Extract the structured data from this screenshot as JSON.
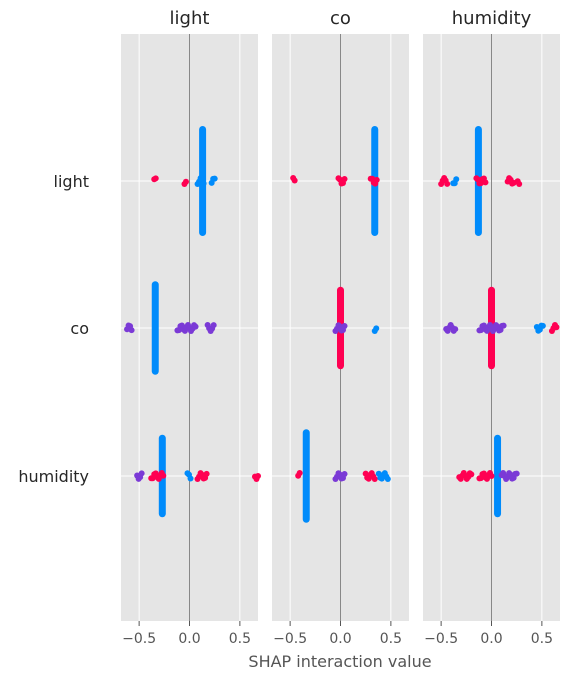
{
  "chart_data": {
    "type": "scatter",
    "kind": "shap_interaction_summary",
    "features": [
      "light",
      "co",
      "humidity"
    ],
    "panel_titles": [
      "light",
      "co",
      "humidity"
    ],
    "row_labels": [
      "light",
      "co",
      "humidity"
    ],
    "xlabel": "SHAP interaction value",
    "xlim": [
      -0.68,
      0.68
    ],
    "xticks": [
      -0.5,
      0.0,
      0.5
    ],
    "xtick_labels": [
      "−0.5",
      "0.0",
      "0.5"
    ],
    "grid": true,
    "background": "#e5e5e5",
    "colors": {
      "high": "#ff0052",
      "low": "#008bfb",
      "mid": "#7b3ad6"
    },
    "points": [
      [
        [
          [
            -0.35,
            -0.33,
            "high"
          ],
          [
            -0.05,
            -0.03,
            "high"
          ],
          [
            0.08,
            0.15,
            "low"
          ],
          [
            0.22,
            0.26,
            "low"
          ]
        ],
        [
          [
            -0.62,
            -0.57,
            "mid"
          ],
          [
            -0.12,
            0.06,
            "mid"
          ],
          [
            0.18,
            0.24,
            "mid"
          ]
        ],
        [
          [
            -0.52,
            -0.47,
            "mid"
          ],
          [
            -0.38,
            -0.25,
            "high"
          ],
          [
            -0.02,
            0.02,
            "low"
          ],
          [
            0.08,
            0.18,
            "high"
          ],
          [
            0.65,
            0.68,
            "high"
          ]
        ]
      ],
      [
        [
          [
            -0.47,
            -0.45,
            "high"
          ],
          [
            -0.02,
            0.04,
            "high"
          ],
          [
            0.3,
            0.36,
            "high"
          ]
        ],
        [
          [
            -0.05,
            0.05,
            "mid"
          ],
          [
            0.34,
            0.36,
            "low"
          ]
        ],
        [
          [
            -0.42,
            -0.4,
            "high"
          ],
          [
            -0.05,
            0.05,
            "mid"
          ],
          [
            0.25,
            0.34,
            "high"
          ],
          [
            0.38,
            0.47,
            "low"
          ]
        ]
      ],
      [
        [
          [
            -0.5,
            -0.43,
            "high"
          ],
          [
            -0.38,
            -0.35,
            "low"
          ],
          [
            -0.15,
            -0.05,
            "high"
          ],
          [
            0.16,
            0.22,
            "high"
          ],
          [
            0.26,
            0.28,
            "high"
          ]
        ],
        [
          [
            -0.45,
            -0.35,
            "mid"
          ],
          [
            -0.12,
            0.12,
            "mid"
          ],
          [
            0.45,
            0.52,
            "low"
          ],
          [
            0.6,
            0.65,
            "high"
          ]
        ],
        [
          [
            -0.32,
            -0.2,
            "high"
          ],
          [
            -0.12,
            0.0,
            "high"
          ],
          [
            0.1,
            0.25,
            "mid"
          ]
        ]
      ]
    ],
    "columns": [
      [
        [
          "light",
          "low",
          0.13,
          1.0
        ],
        [
          "co",
          "low",
          -0.34,
          0.85
        ],
        [
          "humidity",
          "low",
          -0.27,
          0.75
        ]
      ],
      [
        [
          "light",
          "low",
          0.34,
          1.0
        ],
        [
          "co",
          "high",
          0.0,
          0.75
        ],
        [
          "humidity",
          "low",
          -0.34,
          0.85
        ]
      ],
      [
        [
          "light",
          "low",
          -0.13,
          1.0
        ],
        [
          "co",
          "high",
          0.0,
          0.75
        ],
        [
          "humidity",
          "low",
          0.06,
          0.75
        ]
      ]
    ]
  }
}
